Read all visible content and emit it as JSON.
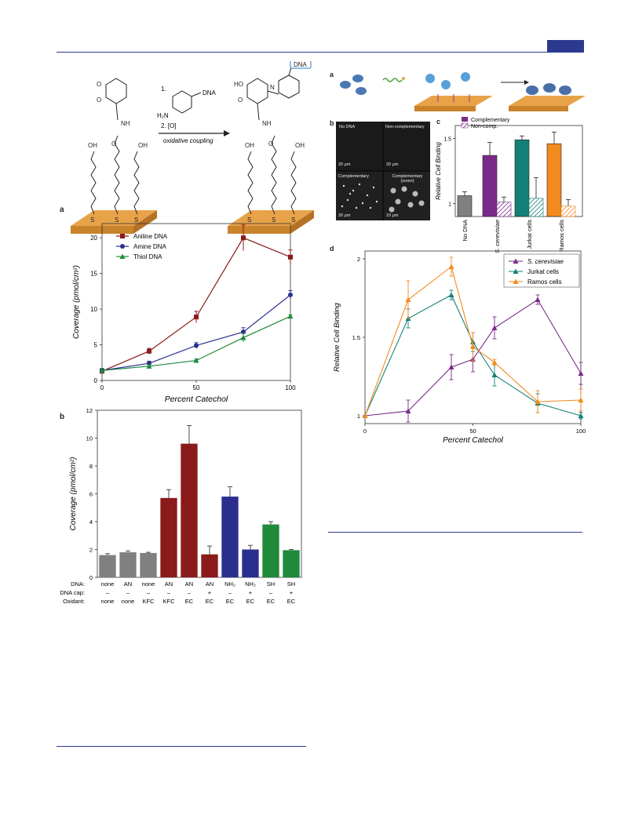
{
  "colors": {
    "rule": "#2b3a8f",
    "gold": "#e8a34a",
    "aniline": "#8b1a1a",
    "amine": "#2a2f8f",
    "thiol": "#1f8a3a",
    "purple": "#7a2a8a",
    "teal": "#148077",
    "orange": "#f28a1e",
    "gray": "#7f7f7f"
  },
  "scheme": {
    "dna_box": "DNA",
    "reagent_dna": "DNA",
    "reagent_h2n": "H₂N",
    "step1": "1.",
    "step2": "2. [O]",
    "arrow_label": "oxidative coupling",
    "labels": {
      "oh": "OH",
      "nh": "NH",
      "o": "O",
      "s": "S",
      "ho": "HO",
      "n": "N"
    }
  },
  "panel_letters": {
    "a_left": "a",
    "b_left": "b",
    "a_right": "a",
    "b_right": "b",
    "c_right": "c",
    "d_right": "d"
  },
  "micro": {
    "tiles": [
      {
        "title": "No DNA",
        "scale": "20 μm"
      },
      {
        "title": "Non-complementary",
        "scale": "20 μm"
      },
      {
        "title": "Complementary",
        "scale": "20 μm"
      },
      {
        "title": "Complementary (zoom)",
        "scale": "10 μm"
      }
    ]
  },
  "chart_data": [
    {
      "id": "left-a",
      "type": "line",
      "xlabel": "Percent Catechol",
      "ylabel": "Coverage (pmol/cm²)",
      "xlim": [
        0,
        100
      ],
      "ylim": [
        0,
        22
      ],
      "xticks": [
        0,
        50,
        100
      ],
      "yticks": [
        0,
        5,
        10,
        15,
        20
      ],
      "legend": "top-left",
      "series": [
        {
          "name": "Aniline DNA",
          "color": "#8b1a1a",
          "marker": "square",
          "x": [
            0,
            25,
            50,
            75,
            100
          ],
          "y": [
            1.3,
            4.1,
            8.9,
            20.0,
            17.3
          ],
          "err": [
            0.3,
            0.4,
            0.8,
            1.8,
            1.0
          ]
        },
        {
          "name": "Amine DNA",
          "color": "#2a2f8f",
          "marker": "circle",
          "x": [
            0,
            25,
            50,
            75,
            100
          ],
          "y": [
            1.4,
            2.4,
            4.9,
            6.8,
            12.0
          ],
          "err": [
            0.3,
            0.3,
            0.4,
            0.6,
            0.6
          ]
        },
        {
          "name": "Thiol DNA",
          "color": "#1f8a3a",
          "marker": "triangle",
          "x": [
            0,
            25,
            50,
            75,
            100
          ],
          "y": [
            1.4,
            2.0,
            2.8,
            6.0,
            9.0
          ],
          "err": [
            0.3,
            0.2,
            0.2,
            0.6,
            0.2
          ]
        }
      ]
    },
    {
      "id": "left-b",
      "type": "bar",
      "ylabel": "Coverage (pmol/cm²)",
      "ylim": [
        0,
        12
      ],
      "yticks": [
        0,
        2,
        4,
        6,
        8,
        10,
        12
      ],
      "values": [
        1.6,
        1.8,
        1.75,
        5.7,
        9.6,
        1.65,
        5.8,
        2.0,
        3.8,
        1.95
      ],
      "errors": [
        0.1,
        0.1,
        0.05,
        0.6,
        1.3,
        0.6,
        0.7,
        0.3,
        0.2,
        0.05
      ],
      "colors": [
        "#808080",
        "#808080",
        "#808080",
        "#8b1a1a",
        "#8b1a1a",
        "#8b1a1a",
        "#2a2f8f",
        "#2a2f8f",
        "#1f8a3a",
        "#1f8a3a"
      ],
      "row_labels": [
        "DNA:",
        "DNA cap:",
        "Oxidant:"
      ],
      "rows": [
        [
          "none",
          "AN",
          "none",
          "AN",
          "AN",
          "AN",
          "NH₂",
          "NH₂",
          "SH",
          "SH"
        ],
        [
          "–",
          "–",
          "–",
          "–",
          "–",
          "+",
          "–",
          "+",
          "–",
          "+"
        ],
        [
          "none",
          "none",
          "KFC",
          "KFC",
          "EC",
          "EC",
          "EC",
          "EC",
          "EC",
          "EC"
        ]
      ]
    },
    {
      "id": "right-c",
      "type": "bar",
      "ylabel": "Relative Cell Binding",
      "ylim": [
        0.9,
        1.6
      ],
      "yticks": [
        1,
        1.5
      ],
      "legend": "top",
      "series": [
        {
          "name": "Complementary"
        },
        {
          "name": "Non-comp."
        }
      ],
      "categories": [
        "No DNA",
        "S. cerevisiae",
        "Jurkat cells",
        "Ramos cells"
      ],
      "bars": [
        {
          "group": 0,
          "value": 1.06,
          "err": 0.03,
          "color": "#808080",
          "hatch": false
        },
        {
          "group": 1,
          "value": 1.37,
          "err": 0.1,
          "color": "#7a2a8a",
          "hatch": false
        },
        {
          "group": 1,
          "value": 1.01,
          "err": 0.04,
          "color": "#7a2a8a",
          "hatch": true
        },
        {
          "group": 2,
          "value": 1.49,
          "err": 0.03,
          "color": "#148077",
          "hatch": false
        },
        {
          "group": 2,
          "value": 1.04,
          "err": 0.16,
          "color": "#148077",
          "hatch": true
        },
        {
          "group": 3,
          "value": 1.46,
          "err": 0.09,
          "color": "#f28a1e",
          "hatch": false
        },
        {
          "group": 3,
          "value": 0.98,
          "err": 0.05,
          "color": "#f28a1e",
          "hatch": true
        }
      ]
    },
    {
      "id": "right-d",
      "type": "line",
      "xlabel": "Percent Catechol",
      "ylabel": "Relative Cell Binding",
      "xlim": [
        0,
        100
      ],
      "ylim": [
        0.95,
        2.05
      ],
      "xticks": [
        0,
        50,
        100
      ],
      "yticks": [
        1,
        1.5,
        2
      ],
      "legend": "top-right",
      "series": [
        {
          "name": "S. cerevisiae",
          "color": "#7a2a8a",
          "x": [
            0,
            20,
            40,
            50,
            60,
            80,
            100
          ],
          "y": [
            1.0,
            1.03,
            1.31,
            1.36,
            1.56,
            1.74,
            1.27
          ],
          "err": [
            0,
            0.07,
            0.08,
            0.08,
            0.07,
            0.03,
            0.07
          ]
        },
        {
          "name": "Jurkat cells",
          "color": "#148077",
          "x": [
            0,
            20,
            40,
            50,
            60,
            80,
            100
          ],
          "y": [
            1.0,
            1.62,
            1.77,
            1.47,
            1.26,
            1.08,
            1.0
          ],
          "err": [
            0,
            0.06,
            0.03,
            0.06,
            0.07,
            0.06,
            0.02
          ]
        },
        {
          "name": "Ramos cells",
          "color": "#f28a1e",
          "x": [
            0,
            20,
            40,
            50,
            60,
            80,
            100
          ],
          "y": [
            1.0,
            1.74,
            1.95,
            1.44,
            1.34,
            1.09,
            1.1
          ],
          "err": [
            0,
            0.12,
            0.06,
            0.09,
            0.02,
            0.07,
            0.07
          ]
        }
      ]
    }
  ]
}
